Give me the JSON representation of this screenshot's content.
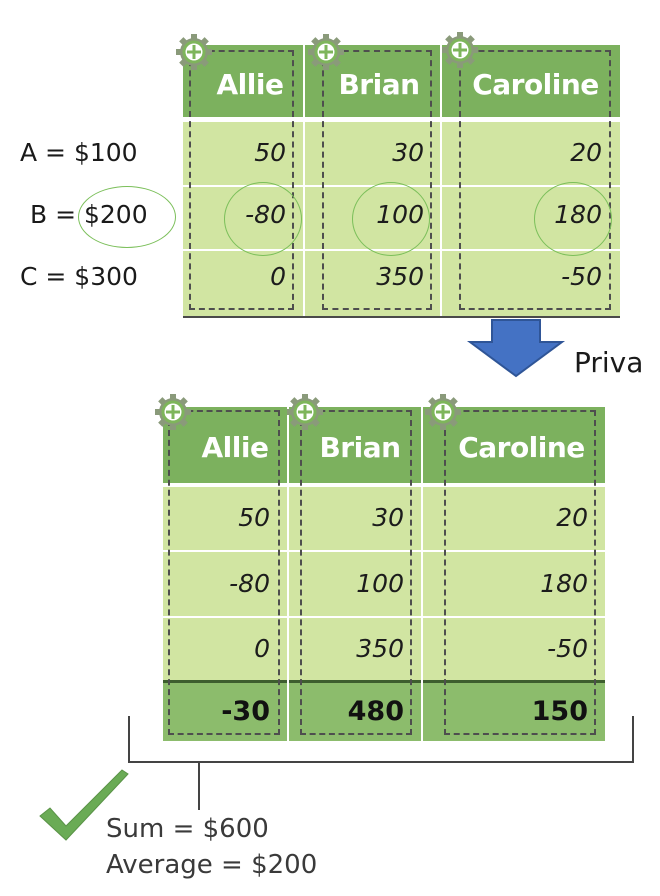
{
  "original": {
    "columns": [
      "Allie",
      "Brian",
      "Caroline"
    ],
    "rows": [
      {
        "label": "A = $100",
        "values": [
          "50",
          "30",
          "20"
        ]
      },
      {
        "label": "B = $200",
        "values": [
          "-80",
          "100",
          "180"
        ]
      },
      {
        "label": "C = $300",
        "values": [
          "0",
          "350",
          "-50"
        ]
      }
    ]
  },
  "arrow_label": "Priva",
  "private": {
    "columns": [
      "Allie",
      "Brian",
      "Caroline"
    ],
    "rows": [
      {
        "values": [
          "50",
          "30",
          "20"
        ]
      },
      {
        "values": [
          "-80",
          "100",
          "180"
        ]
      },
      {
        "values": [
          "0",
          "350",
          "-50"
        ]
      }
    ],
    "totals": [
      "-30",
      "480",
      "150"
    ]
  },
  "result": {
    "sum": "Sum = $600",
    "average": "Average = $200"
  },
  "colors": {
    "header_green": "#7cb15e",
    "body_green": "#d1e5a2",
    "totals_green": "#8cbc6c",
    "arrow_blue": "#4472c4",
    "checkmark_green": "#6aab55"
  }
}
